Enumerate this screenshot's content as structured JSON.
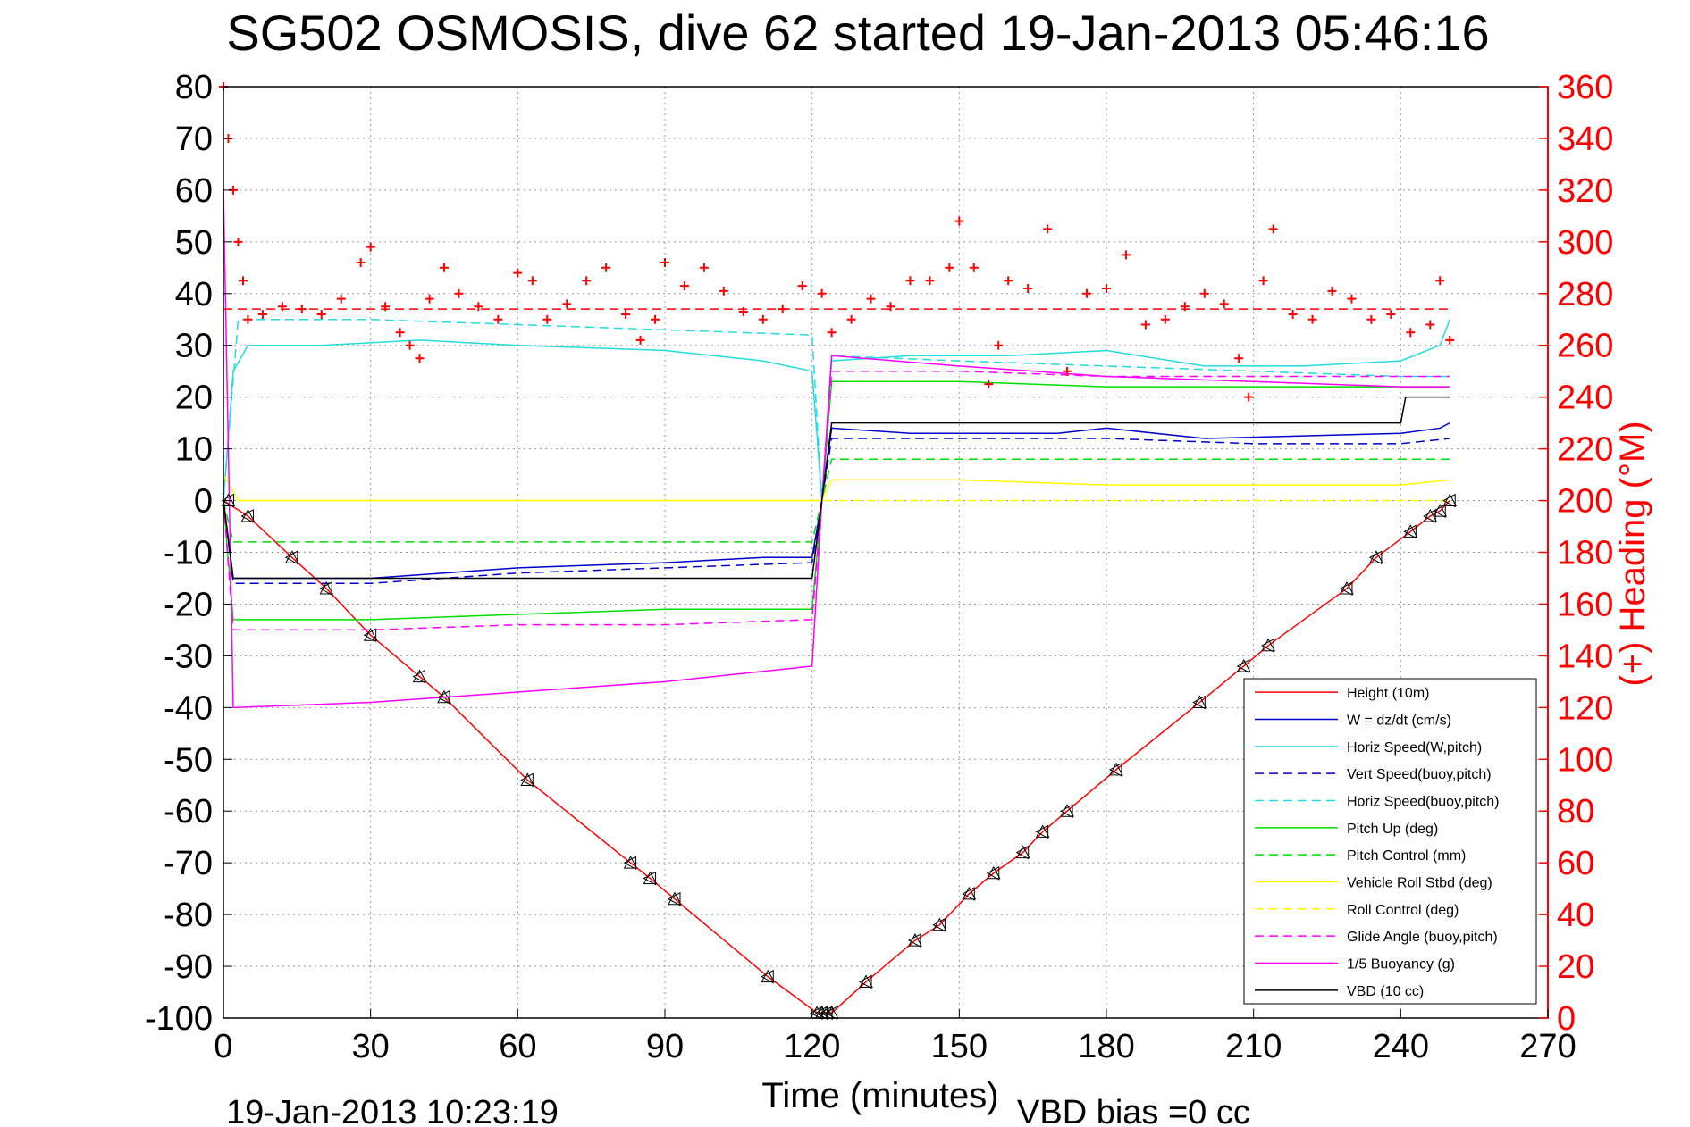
{
  "chart_data": {
    "type": "line",
    "title": "SG502 OSMOSIS, dive 62 started 19-Jan-2013 05:46:16",
    "xlabel": "Time (minutes)",
    "ylabel_right": "(+) Heading (°M)",
    "xlim": [
      0,
      270
    ],
    "ylim_left": [
      -100,
      80
    ],
    "ylim_right": [
      0,
      360
    ],
    "x_ticks": [
      "0",
      "30",
      "60",
      "90",
      "120",
      "150",
      "180",
      "210",
      "240",
      "270"
    ],
    "y_ticks_left": [
      "80",
      "70",
      "60",
      "50",
      "40",
      "30",
      "20",
      "10",
      "0",
      "-10",
      "-20",
      "-30",
      "-40",
      "-50",
      "-60",
      "-70",
      "-80",
      "-90",
      "-100"
    ],
    "y_ticks_right": [
      "360",
      "340",
      "320",
      "300",
      "280",
      "260",
      "240",
      "220",
      "200",
      "180",
      "160",
      "140",
      "120",
      "100",
      "80",
      "60",
      "40",
      "20",
      "0"
    ],
    "grid": true,
    "legend_position": "bottom-right",
    "footer_left": "19-Jan-2013 10:23:19",
    "footer_right": "VBD bias =0 cc",
    "colors": {
      "red": "#ff0000",
      "blue": "#0000cc",
      "cyan": "#22dddd",
      "green": "#00dd00",
      "yellow": "#ffff00",
      "magenta": "#ff00ff",
      "black": "#000000"
    },
    "legend": [
      {
        "name": "Height (10m)",
        "color": "#ff0000",
        "dash": false
      },
      {
        "name": "W = dz/dt (cm/s)",
        "color": "#0000cc",
        "dash": false
      },
      {
        "name": "Horiz Speed(W,pitch)",
        "color": "#22dddd",
        "dash": false
      },
      {
        "name": "Vert Speed(buoy,pitch)",
        "color": "#0000cc",
        "dash": true
      },
      {
        "name": "Horiz Speed(buoy,pitch)",
        "color": "#22dddd",
        "dash": true
      },
      {
        "name": "Pitch Up (deg)",
        "color": "#00dd00",
        "dash": false
      },
      {
        "name": "Pitch Control (mm)",
        "color": "#00dd00",
        "dash": true
      },
      {
        "name": "Vehicle Roll Stbd (deg)",
        "color": "#ffff00",
        "dash": false
      },
      {
        "name": "Roll Control (deg)",
        "color": "#ffff00",
        "dash": true
      },
      {
        "name": "Glide Angle (buoy,pitch)",
        "color": "#ff00ff",
        "dash": true
      },
      {
        "name": "1/5 Buoyancy (g)",
        "color": "#ff00ff",
        "dash": false
      },
      {
        "name": "VBD (10 cc)",
        "color": "#000000",
        "dash": false
      }
    ],
    "series": [
      {
        "name": "Height (10m)",
        "axis": "left",
        "x": [
          0,
          5,
          14,
          21,
          30,
          40,
          45,
          62,
          83,
          87,
          92,
          111,
          121,
          124,
          131,
          141,
          146,
          152,
          157,
          163,
          167,
          172,
          182,
          199,
          208,
          213,
          229,
          235,
          242,
          246,
          248,
          250
        ],
        "y": [
          0,
          -3,
          -11,
          -17,
          -26,
          -34,
          -38,
          -54,
          -70,
          -73,
          -77,
          -92,
          -99,
          -99,
          -93,
          -85,
          -82,
          -76,
          -72,
          -68,
          -64,
          -60,
          -52,
          -39,
          -32,
          -28,
          -17,
          -11,
          -6,
          -3,
          -2,
          0
        ]
      },
      {
        "name": "W = dz/dt (cm/s)",
        "axis": "left",
        "x": [
          0,
          2,
          10,
          30,
          60,
          90,
          110,
          120,
          122,
          124,
          140,
          170,
          180,
          200,
          240,
          248,
          250
        ],
        "y": [
          0,
          -15,
          -15,
          -15,
          -13,
          -12,
          -11,
          -11,
          0,
          14,
          13,
          13,
          14,
          12,
          13,
          14,
          15
        ]
      },
      {
        "name": "Horiz Speed(W,pitch)",
        "axis": "left",
        "x": [
          0,
          2,
          5,
          20,
          40,
          60,
          90,
          110,
          120,
          122,
          124,
          140,
          160,
          180,
          200,
          220,
          240,
          248,
          250
        ],
        "y": [
          0,
          25,
          30,
          30,
          31,
          30,
          29,
          27,
          25,
          0,
          27,
          28,
          28,
          29,
          26,
          26,
          27,
          30,
          35
        ]
      },
      {
        "name": "Vert Speed(buoy,pitch)",
        "axis": "left",
        "x": [
          0,
          2,
          30,
          60,
          90,
          120,
          122,
          124,
          150,
          180,
          210,
          240,
          250
        ],
        "y": [
          0,
          -16,
          -16,
          -14,
          -13,
          -12,
          0,
          12,
          12,
          12,
          11,
          11,
          12
        ]
      },
      {
        "name": "Horiz Speed(buoy,pitch)",
        "axis": "left",
        "x": [
          0,
          3,
          30,
          60,
          90,
          120,
          122,
          124,
          150,
          180,
          210,
          240,
          250
        ],
        "y": [
          0,
          35,
          35,
          34,
          33,
          32,
          0,
          28,
          27,
          26,
          25,
          24,
          24
        ]
      },
      {
        "name": "Pitch Up (deg)",
        "axis": "left",
        "x": [
          0,
          2,
          30,
          60,
          90,
          120,
          122,
          124,
          150,
          180,
          210,
          240,
          250
        ],
        "y": [
          0,
          -23,
          -23,
          -22,
          -21,
          -21,
          0,
          23,
          23,
          22,
          22,
          22,
          22
        ]
      },
      {
        "name": "Pitch Control (mm)",
        "axis": "left",
        "x": [
          0,
          2,
          30,
          60,
          90,
          120,
          122,
          124,
          150,
          180,
          210,
          240,
          250
        ],
        "y": [
          0,
          -8,
          -8,
          -8,
          -8,
          -8,
          0,
          8,
          8,
          8,
          8,
          8,
          8
        ]
      },
      {
        "name": "Vehicle Roll Stbd (deg)",
        "axis": "left",
        "x": [
          0,
          3,
          30,
          60,
          90,
          120,
          122,
          124,
          150,
          180,
          210,
          240,
          250
        ],
        "y": [
          5,
          0,
          0,
          0,
          0,
          0,
          0,
          4,
          4,
          3,
          3,
          3,
          4
        ]
      },
      {
        "name": "Roll Control (deg)",
        "axis": "left",
        "x": [
          0,
          3,
          30,
          60,
          90,
          120,
          124,
          150,
          180,
          210,
          240,
          250
        ],
        "y": [
          0,
          0,
          0,
          0,
          0,
          0,
          0,
          0,
          0,
          0,
          0,
          0
        ]
      },
      {
        "name": "Glide Angle (buoy,pitch)",
        "axis": "left",
        "x": [
          0,
          2,
          30,
          60,
          90,
          120,
          122,
          124,
          150,
          180,
          210,
          240,
          250
        ],
        "y": [
          0,
          -25,
          -25,
          -24,
          -24,
          -23,
          0,
          25,
          25,
          24,
          24,
          24,
          24
        ]
      },
      {
        "name": "1/5 Buoyancy (g)",
        "axis": "left",
        "x": [
          0,
          2,
          30,
          60,
          90,
          110,
          120,
          122,
          124,
          150,
          180,
          210,
          240,
          250
        ],
        "y": [
          60,
          -40,
          -39,
          -37,
          -35,
          -33,
          -32,
          0,
          28,
          26,
          24,
          23,
          22,
          22
        ]
      },
      {
        "name": "VBD (10 cc)",
        "axis": "left",
        "x": [
          0,
          2,
          30,
          60,
          90,
          120,
          122,
          124,
          150,
          180,
          210,
          240,
          241,
          248,
          250
        ],
        "y": [
          0,
          -15,
          -15,
          -15,
          -15,
          -15,
          0,
          15,
          15,
          15,
          15,
          15,
          20,
          20,
          20
        ]
      },
      {
        "name": "Heading",
        "axis": "right",
        "marker": "+",
        "x": [
          0,
          1,
          2,
          3,
          4,
          5,
          8,
          12,
          16,
          20,
          24,
          28,
          30,
          33,
          36,
          38,
          40,
          42,
          45,
          48,
          52,
          56,
          60,
          63,
          66,
          70,
          74,
          78,
          82,
          85,
          88,
          90,
          94,
          98,
          102,
          106,
          110,
          114,
          118,
          122,
          124,
          128,
          132,
          136,
          140,
          144,
          148,
          150,
          153,
          156,
          158,
          160,
          164,
          168,
          172,
          176,
          180,
          184,
          188,
          192,
          196,
          200,
          204,
          207,
          209,
          212,
          214,
          218,
          222,
          226,
          230,
          234,
          238,
          242,
          246,
          248,
          250
        ],
        "y": [
          360,
          340,
          320,
          300,
          285,
          270,
          272,
          275,
          274,
          272,
          278,
          292,
          298,
          275,
          265,
          260,
          255,
          278,
          290,
          280,
          275,
          270,
          288,
          285,
          270,
          276,
          285,
          290,
          272,
          262,
          270,
          292,
          283,
          290,
          281,
          273,
          270,
          274,
          283,
          280,
          265,
          270,
          278,
          275,
          285,
          285,
          290,
          308,
          290,
          245,
          260,
          285,
          282,
          305,
          250,
          280,
          282,
          295,
          268,
          270,
          275,
          280,
          276,
          255,
          240,
          285,
          305,
          272,
          270,
          281,
          278,
          270,
          272,
          265,
          268,
          285,
          262
        ]
      },
      {
        "name": "Heading mean",
        "axis": "right",
        "dash": true,
        "x": [
          0,
          250
        ],
        "y": [
          274,
          274
        ]
      },
      {
        "name": "Depth markers",
        "axis": "left",
        "marker": "triangle",
        "x": [
          1,
          5,
          14,
          21,
          30,
          40,
          45,
          62,
          83,
          87,
          92,
          111,
          121,
          122,
          123,
          124,
          131,
          141,
          146,
          152,
          157,
          163,
          167,
          172,
          182,
          199,
          208,
          213,
          229,
          235,
          242,
          246,
          248,
          250
        ],
        "y": [
          0,
          -3,
          -11,
          -17,
          -26,
          -34,
          -38,
          -54,
          -70,
          -73,
          -77,
          -92,
          -99,
          -99,
          -99,
          -99,
          -93,
          -85,
          -82,
          -76,
          -72,
          -68,
          -64,
          -60,
          -52,
          -39,
          -32,
          -28,
          -17,
          -11,
          -6,
          -3,
          -2,
          0
        ]
      }
    ]
  }
}
